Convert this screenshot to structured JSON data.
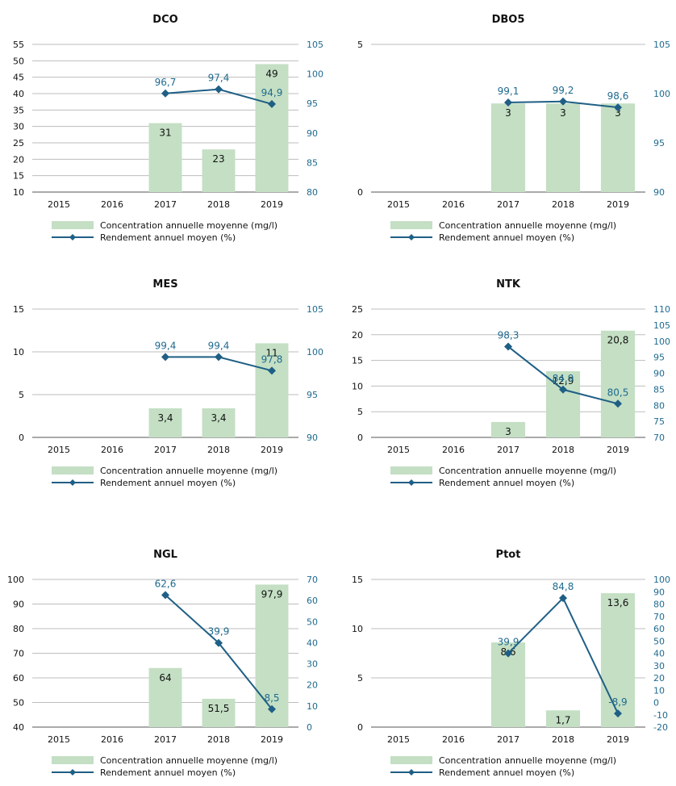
{
  "legend": {
    "bar_label": "Concentration annuelle moyenne (mg/l)",
    "line_label": "Rendement annuel moyen (%)"
  },
  "colors": {
    "bar": "#c4dfc4",
    "line": "#1f5f85",
    "axis_right": "#1f6a8f",
    "text": "#111111",
    "grid": "#bdbdbd"
  },
  "chart_data": [
    {
      "type": "bar",
      "title": "DCO",
      "categories": [
        "2015",
        "2016",
        "2017",
        "2018",
        "2019"
      ],
      "ylim": [
        10,
        55
      ],
      "y_ticks": [
        10,
        15,
        20,
        25,
        30,
        35,
        40,
        45,
        50,
        55
      ],
      "y2lim": [
        80,
        105
      ],
      "y2_ticks": [
        80,
        85,
        90,
        95,
        100,
        105
      ],
      "bar_series": {
        "name": "Concentration annuelle moyenne (mg/l)",
        "values": [
          null,
          null,
          31,
          23,
          49
        ],
        "labels": [
          "",
          "",
          "31",
          "23",
          "49"
        ]
      },
      "line_series": {
        "name": "Rendement annuel moyen (%)",
        "values": [
          null,
          null,
          96.7,
          97.4,
          94.9
        ],
        "labels": [
          "",
          "",
          "96,7",
          "97,4",
          "94,9"
        ]
      },
      "grid": true,
      "legend_position": "bottom"
    },
    {
      "type": "bar",
      "title": "DBO5",
      "categories": [
        "2015",
        "2016",
        "2017",
        "2018",
        "2019"
      ],
      "ylim": [
        0,
        5
      ],
      "y_ticks": [
        0,
        5
      ],
      "y2lim": [
        90,
        105
      ],
      "y2_ticks": [
        90,
        95,
        100,
        105
      ],
      "bar_series": {
        "name": "Concentration annuelle moyenne (mg/l)",
        "values": [
          null,
          null,
          3,
          3,
          3
        ],
        "labels": [
          "",
          "",
          "3",
          "3",
          "3"
        ]
      },
      "line_series": {
        "name": "Rendement annuel moyen (%)",
        "values": [
          null,
          null,
          99.1,
          99.2,
          98.6
        ],
        "labels": [
          "",
          "",
          "99,1",
          "99,2",
          "98,6"
        ]
      },
      "grid": true,
      "legend_position": "bottom"
    },
    {
      "type": "bar",
      "title": "MES",
      "categories": [
        "2015",
        "2016",
        "2017",
        "2018",
        "2019"
      ],
      "ylim": [
        0,
        15
      ],
      "y_ticks": [
        0,
        5,
        10,
        15
      ],
      "y2lim": [
        90,
        105
      ],
      "y2_ticks": [
        90,
        95,
        100,
        105
      ],
      "bar_series": {
        "name": "Concentration annuelle moyenne (mg/l)",
        "values": [
          null,
          null,
          3.4,
          3.4,
          11
        ],
        "labels": [
          "",
          "",
          "3,4",
          "3,4",
          "11"
        ]
      },
      "line_series": {
        "name": "Rendement annuel moyen (%)",
        "values": [
          null,
          null,
          99.4,
          99.4,
          97.8
        ],
        "labels": [
          "",
          "",
          "99,4",
          "99,4",
          "97,8"
        ]
      },
      "grid": true,
      "legend_position": "bottom"
    },
    {
      "type": "bar",
      "title": "NTK",
      "categories": [
        "2015",
        "2016",
        "2017",
        "2018",
        "2019"
      ],
      "ylim": [
        0,
        25
      ],
      "y_ticks": [
        0,
        5,
        10,
        15,
        20,
        25
      ],
      "y2lim": [
        70,
        110
      ],
      "y2_ticks": [
        70,
        75,
        80,
        85,
        90,
        95,
        100,
        105,
        110
      ],
      "bar_series": {
        "name": "Concentration annuelle moyenne (mg/l)",
        "values": [
          null,
          null,
          3,
          12.9,
          20.8
        ],
        "labels": [
          "",
          "",
          "3",
          "12,9",
          "20,8"
        ]
      },
      "line_series": {
        "name": "Rendement annuel moyen (%)",
        "values": [
          null,
          null,
          98.3,
          84.9,
          80.5
        ],
        "labels": [
          "",
          "",
          "98,3",
          "84,9",
          "80,5"
        ]
      },
      "grid": true,
      "legend_position": "bottom"
    },
    {
      "type": "bar",
      "title": "NGL",
      "categories": [
        "2015",
        "2016",
        "2017",
        "2018",
        "2019"
      ],
      "ylim": [
        40,
        100
      ],
      "y_ticks": [
        40,
        50,
        60,
        70,
        80,
        90,
        100
      ],
      "y2lim": [
        0,
        70
      ],
      "y2_ticks": [
        0,
        10,
        20,
        30,
        40,
        50,
        60,
        70
      ],
      "bar_series": {
        "name": "Concentration annuelle moyenne (mg/l)",
        "values": [
          null,
          null,
          64,
          51.5,
          97.9
        ],
        "labels": [
          "",
          "",
          "64",
          "51,5",
          "97,9"
        ]
      },
      "line_series": {
        "name": "Rendement annuel moyen (%)",
        "values": [
          null,
          null,
          62.6,
          39.9,
          8.5
        ],
        "labels": [
          "",
          "",
          "62,6",
          "39,9",
          "8,5"
        ]
      },
      "grid": true,
      "legend_position": "bottom"
    },
    {
      "type": "bar",
      "title": "Ptot",
      "categories": [
        "2015",
        "2016",
        "2017",
        "2018",
        "2019"
      ],
      "ylim": [
        0,
        15
      ],
      "y_ticks": [
        0,
        5,
        10,
        15
      ],
      "y2lim": [
        -20,
        100
      ],
      "y2_ticks": [
        -20,
        -10,
        0,
        10,
        20,
        30,
        40,
        50,
        60,
        70,
        80,
        90,
        100
      ],
      "bar_series": {
        "name": "Concentration annuelle moyenne (mg/l)",
        "values": [
          null,
          null,
          8.6,
          1.7,
          13.6
        ],
        "labels": [
          "",
          "",
          "8,6",
          "1,7",
          "13,6"
        ]
      },
      "line_series": {
        "name": "Rendement annuel moyen (%)",
        "values": [
          null,
          null,
          39.9,
          84.8,
          -8.9
        ],
        "labels": [
          "",
          "",
          "39,9",
          "84,8",
          "-8,9"
        ]
      },
      "grid": true,
      "legend_position": "bottom"
    }
  ]
}
